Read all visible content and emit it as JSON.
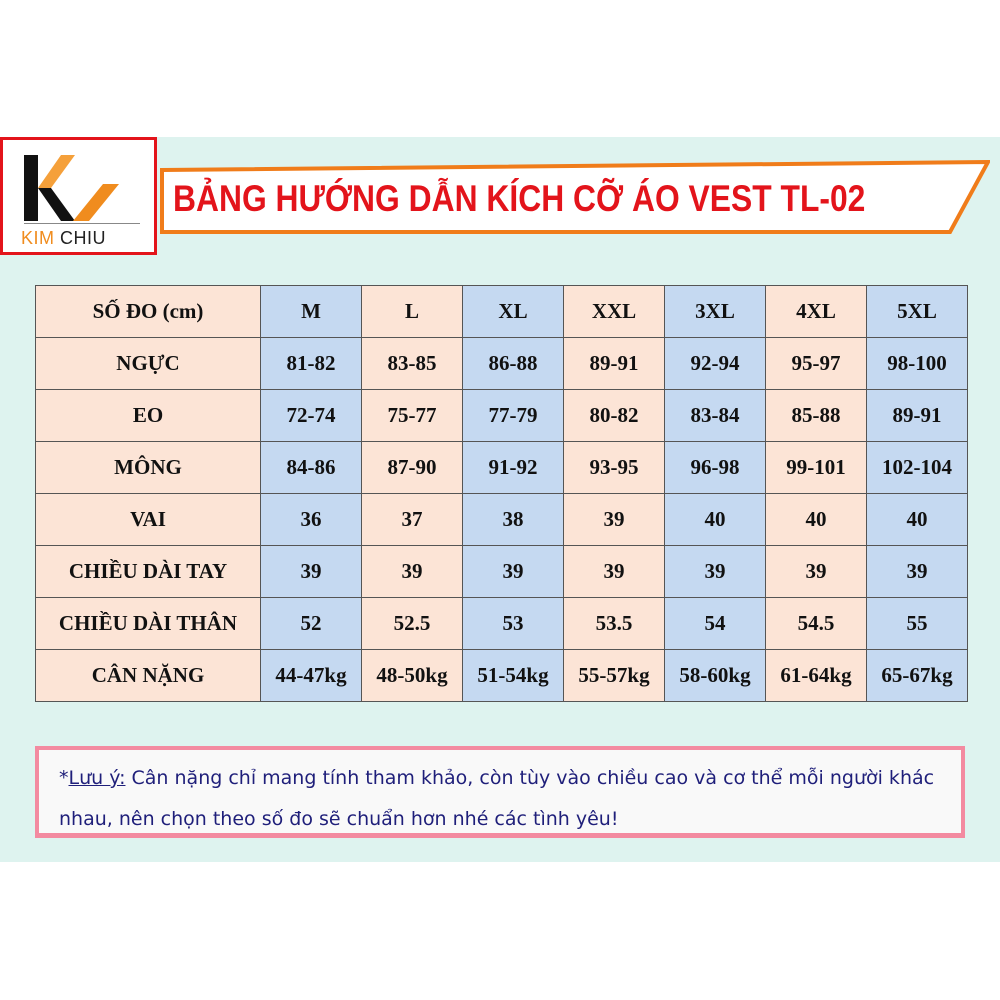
{
  "logo": {
    "brand_k": "KIM",
    "brand_c": "CHIU"
  },
  "title": "BẢNG HƯỚNG DẪN KÍCH CỠ ÁO VEST TL-02",
  "colors": {
    "title": "#e3141b",
    "accent_orange": "#f08c1e",
    "blue_col": "#c5d9f1",
    "peach_col": "#fce4d6",
    "note_border": "#f38aa0",
    "note_text": "#1f1f7a",
    "page_bg": "#def3ef"
  },
  "table": {
    "header": [
      "SỐ ĐO (cm)",
      "M",
      "L",
      "XL",
      "XXL",
      "3XL",
      "4XL",
      "5XL"
    ],
    "rows": [
      [
        "NGỰC",
        "81-82",
        "83-85",
        "86-88",
        "89-91",
        "92-94",
        "95-97",
        "98-100"
      ],
      [
        "EO",
        "72-74",
        "75-77",
        "77-79",
        "80-82",
        "83-84",
        "85-88",
        "89-91"
      ],
      [
        "MÔNG",
        "84-86",
        "87-90",
        "91-92",
        "93-95",
        "96-98",
        "99-101",
        "102-104"
      ],
      [
        "VAI",
        "36",
        "37",
        "38",
        "39",
        "40",
        "40",
        "40"
      ],
      [
        "CHIỀU DÀI TAY",
        "39",
        "39",
        "39",
        "39",
        "39",
        "39",
        "39"
      ],
      [
        "CHIỀU DÀI THÂN",
        "52",
        "52.5",
        "53",
        "53.5",
        "54",
        "54.5",
        "55"
      ],
      [
        "CÂN NẶNG",
        "44-47kg",
        "48-50kg",
        "51-54kg",
        "55-57kg",
        "58-60kg",
        "61-64kg",
        "65-67kg"
      ]
    ]
  },
  "note": {
    "prefix": "*",
    "label": "Lưu ý:",
    "text": " Cân nặng chỉ mang tính tham khảo, còn tùy vào chiều cao và cơ thể mỗi người khác nhau, nên chọn theo số đo sẽ chuẩn hơn nhé các tình yêu!"
  }
}
